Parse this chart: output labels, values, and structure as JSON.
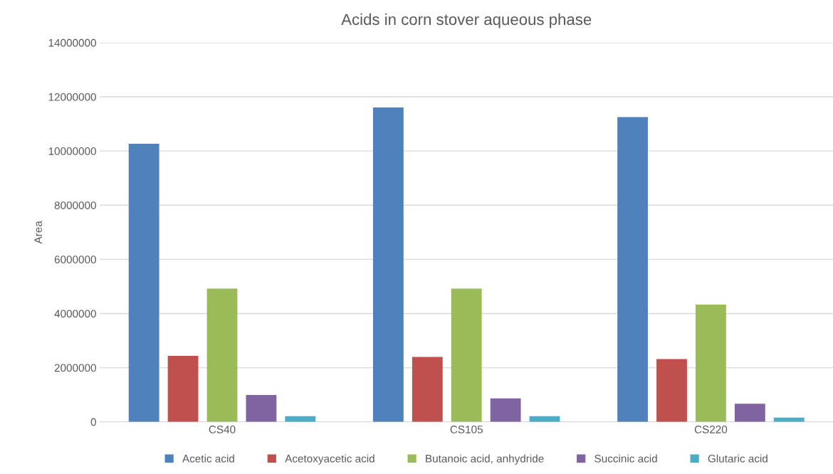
{
  "chart_data": {
    "type": "bar",
    "title": "Acids in corn stover aqueous phase",
    "ylabel": "Area",
    "categories": [
      "CS40",
      "CS105",
      "CS220"
    ],
    "series": [
      {
        "name": "Acetic acid",
        "color": "#4f81bd",
        "values": [
          10270000,
          11610000,
          11250000
        ]
      },
      {
        "name": "Acetoxyacetic acid",
        "color": "#c0504d",
        "values": [
          2440000,
          2400000,
          2320000
        ]
      },
      {
        "name": "Butanoic acid, anhydride",
        "color": "#9bbb59",
        "values": [
          4920000,
          4920000,
          4330000
        ]
      },
      {
        "name": "Succinic acid",
        "color": "#8064a2",
        "values": [
          990000,
          870000,
          670000
        ]
      },
      {
        "name": "Glutaric acid",
        "color": "#4bacc6",
        "values": [
          210000,
          210000,
          160000
        ]
      }
    ],
    "ylim": [
      0,
      14000000
    ],
    "yticks": [
      0,
      2000000,
      4000000,
      6000000,
      8000000,
      10000000,
      12000000,
      14000000
    ],
    "grid": "y",
    "legend": "bottom"
  }
}
